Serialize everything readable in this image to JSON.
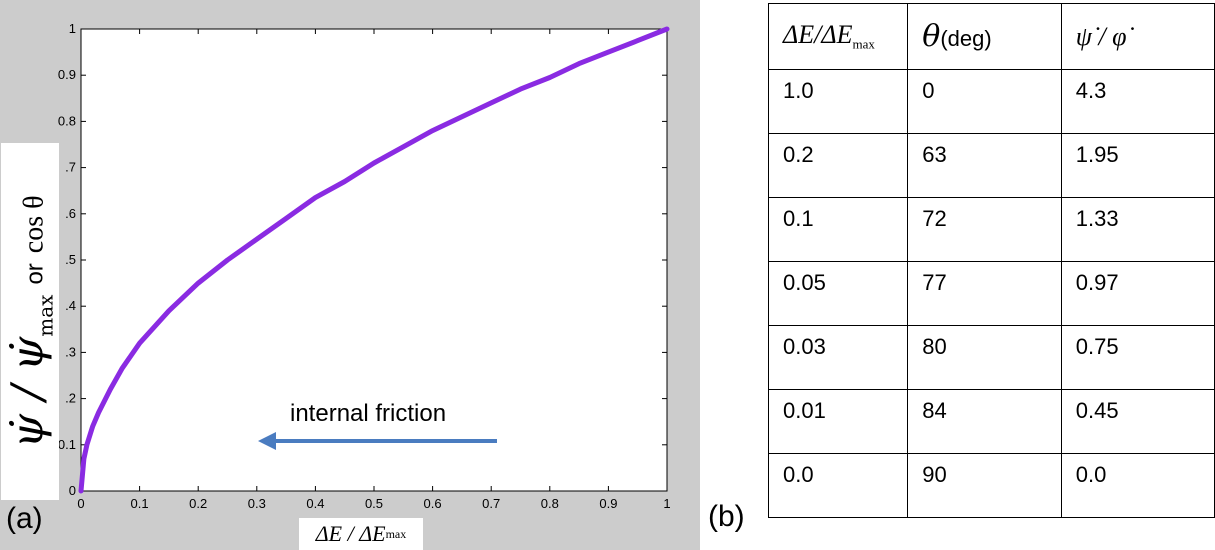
{
  "colors": {
    "curve": "#8a2be2",
    "arrow": "#4a7cc0",
    "panel_bg": "#cccccc"
  },
  "panel_labels": {
    "a": "(a)",
    "b": "(b)"
  },
  "chart_data": {
    "type": "line",
    "xlabel": "ΔE / ΔE",
    "xlabel_sub": "max",
    "ylabel_symbol": "ψ̇ / ψ̇",
    "ylabel_sub": "max",
    "ylabel_or": "or",
    "ylabel_cos": "cos θ",
    "xlim": [
      0,
      1
    ],
    "ylim": [
      0,
      1
    ],
    "x_ticks": [
      "0",
      "0.1",
      "0.2",
      "0.3",
      "0.4",
      "0.5",
      "0.6",
      "0.7",
      "0.8",
      "0.9",
      "1"
    ],
    "y_ticks": [
      "0",
      "0.1",
      ".2",
      ".3",
      ".4",
      ".5",
      ".6",
      ".7",
      "0.8",
      "0.9",
      "1"
    ],
    "annotation": "internal friction",
    "series": [
      {
        "x": [
          0,
          0.005,
          0.01,
          0.02,
          0.03,
          0.05,
          0.07,
          0.1,
          0.15,
          0.2,
          0.25,
          0.3,
          0.35,
          0.4,
          0.45,
          0.5,
          0.55,
          0.6,
          0.65,
          0.7,
          0.75,
          0.8,
          0.85,
          0.9,
          0.95,
          1.0
        ],
        "y": [
          0,
          0.07,
          0.1,
          0.14,
          0.17,
          0.22,
          0.265,
          0.32,
          0.39,
          0.45,
          0.5,
          0.545,
          0.59,
          0.635,
          0.67,
          0.71,
          0.745,
          0.78,
          0.81,
          0.84,
          0.87,
          0.895,
          0.925,
          0.95,
          0.975,
          1.0
        ]
      }
    ]
  },
  "table": {
    "headers": {
      "col1_main": "ΔE/ΔE",
      "col1_sub": "max",
      "col2_symbol": "θ",
      "col2_unit": "(deg)",
      "col3": "ψ̇ / φ̇"
    },
    "rows": [
      [
        "1.0",
        "0",
        "4.3"
      ],
      [
        "0.2",
        "63",
        "1.95"
      ],
      [
        "0.1",
        "72",
        "1.33"
      ],
      [
        "0.05",
        "77",
        "0.97"
      ],
      [
        "0.03",
        "80",
        "0.75"
      ],
      [
        "0.01",
        "84",
        "0.45"
      ],
      [
        "0.0",
        "90",
        "0.0"
      ]
    ]
  }
}
